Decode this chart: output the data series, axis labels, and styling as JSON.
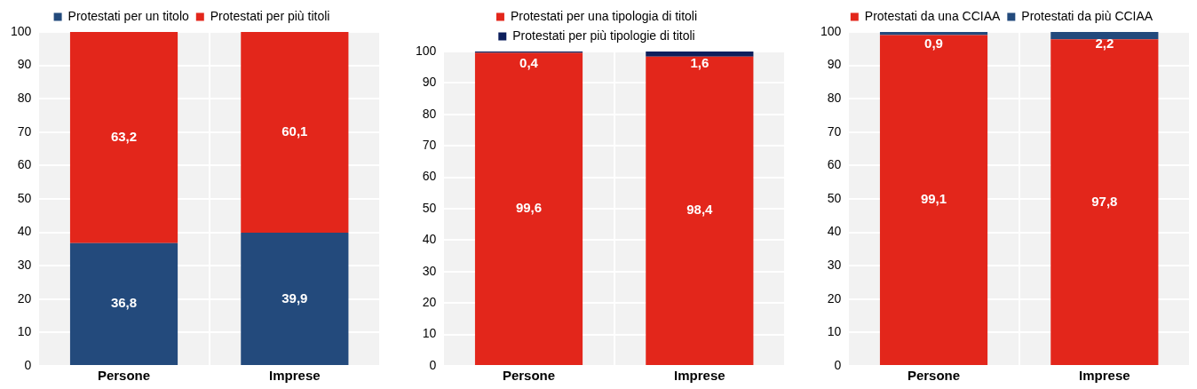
{
  "chart_data": [
    {
      "type": "bar",
      "stacked": true,
      "categories": [
        "Persone",
        "Imprese"
      ],
      "ylim": [
        0,
        100
      ],
      "yticks": [
        0,
        10,
        20,
        30,
        40,
        50,
        60,
        70,
        80,
        90,
        100
      ],
      "grid": true,
      "legend": "top",
      "series": [
        {
          "name": "Protestati per un titolo",
          "color": "#234a7c",
          "values": [
            36.8,
            39.9
          ],
          "value_labels": [
            "36,8",
            "39,9"
          ]
        },
        {
          "name": "Protestati per più titoli",
          "color": "#e3261b",
          "values": [
            63.2,
            60.1
          ],
          "value_labels": [
            "63,2",
            "60,1"
          ]
        }
      ]
    },
    {
      "type": "bar",
      "stacked": true,
      "categories": [
        "Persone",
        "Imprese"
      ],
      "ylim": [
        0,
        100
      ],
      "yticks": [
        0,
        10,
        20,
        30,
        40,
        50,
        60,
        70,
        80,
        90,
        100
      ],
      "grid": true,
      "legend": "top",
      "series": [
        {
          "name": "Protestati per una tipologia di titoli",
          "color": "#e3261b",
          "values": [
            99.6,
            98.4
          ],
          "value_labels": [
            "99,6",
            "98,4"
          ]
        },
        {
          "name": "Protestati per più tipologie di titoli",
          "color": "#0d1f5c",
          "values": [
            0.4,
            1.6
          ],
          "value_labels": [
            "0,4",
            "1,6"
          ]
        }
      ]
    },
    {
      "type": "bar",
      "stacked": true,
      "categories": [
        "Persone",
        "Imprese"
      ],
      "ylim": [
        0,
        100
      ],
      "yticks": [
        0,
        10,
        20,
        30,
        40,
        50,
        60,
        70,
        80,
        90,
        100
      ],
      "grid": true,
      "legend": "top",
      "series": [
        {
          "name": "Protestati da una CCIAA",
          "color": "#e3261b",
          "values": [
            99.1,
            97.8
          ],
          "value_labels": [
            "99,1",
            "97,8"
          ]
        },
        {
          "name": "Protestati da più CCIAA",
          "color": "#234a7c",
          "values": [
            0.9,
            2.2
          ],
          "value_labels": [
            "0,9",
            "2,2"
          ]
        }
      ]
    }
  ]
}
